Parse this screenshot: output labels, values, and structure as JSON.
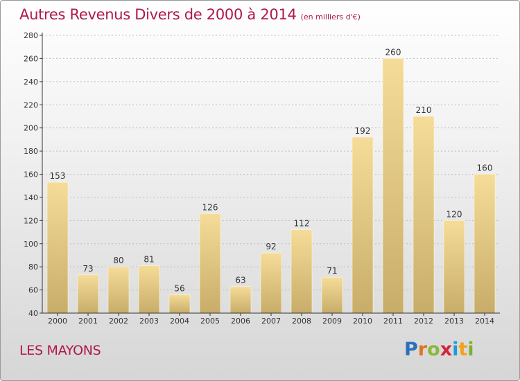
{
  "header": {
    "title": "Autres Revenus Divers de 2000 à 2014",
    "unit": "(en milliers d'€)"
  },
  "footer": {
    "place": "LES MAYONS",
    "logo": {
      "letters": [
        "P",
        "r",
        "o",
        "x",
        "i",
        "t",
        "i"
      ],
      "colors": [
        "#2c6fba",
        "#e27320",
        "#8cb83a",
        "#d6243c",
        "#1e9ad6",
        "#f1a21c",
        "#7cb12f"
      ]
    }
  },
  "colors": {
    "accent": "#b0184a",
    "bar_light": "#f5dc98",
    "bar_dark": "#c8ad6a",
    "axis": "#333333"
  },
  "chart_data": {
    "type": "bar",
    "title": "Autres Revenus Divers de 2000 à 2014",
    "subtitle": "(en milliers d'€)",
    "xlabel": "",
    "ylabel": "",
    "categories": [
      "2000",
      "2001",
      "2002",
      "2003",
      "2004",
      "2005",
      "2006",
      "2007",
      "2008",
      "2009",
      "2010",
      "2011",
      "2012",
      "2013",
      "2014"
    ],
    "values": [
      153,
      73,
      80,
      81,
      56,
      126,
      63,
      92,
      112,
      71,
      192,
      260,
      210,
      120,
      160
    ],
    "ylim": [
      40,
      280
    ],
    "yticks": [
      40,
      60,
      80,
      100,
      120,
      140,
      160,
      180,
      200,
      220,
      240,
      260,
      280
    ],
    "grid": true,
    "data_labels": true
  }
}
